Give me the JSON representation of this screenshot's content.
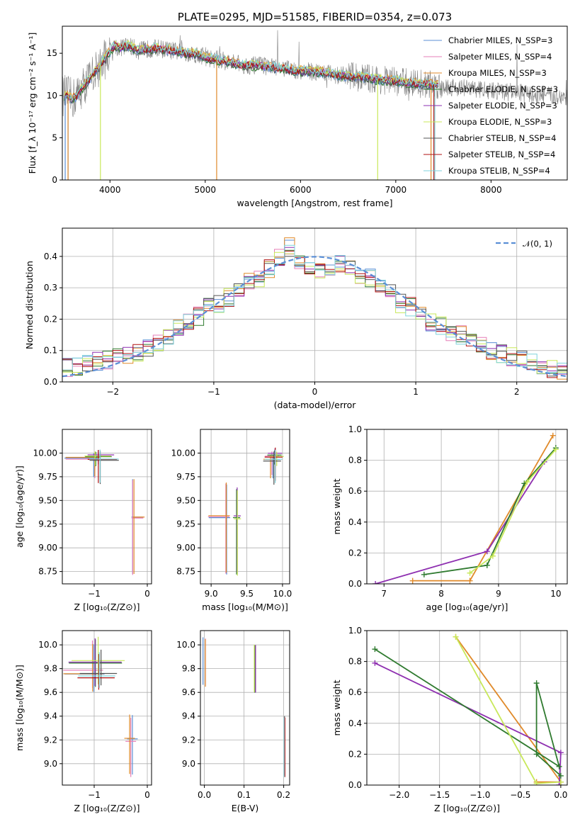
{
  "colors": {
    "Chabrier MILES": "#5b8fd6",
    "Salpeter MILES": "#e67fb8",
    "Kroupa MILES": "#e08a2a",
    "Chabrier ELODIE": "#2f7a2f",
    "Salpeter ELODIE": "#8e2fb0",
    "Kroupa ELODIE": "#c8e85a",
    "Chabrier STELIB": "#555555",
    "Salpeter STELIB": "#b01010",
    "Kroupa STELIB": "#7fd3dc",
    "normal": "#5b8fd6",
    "data": "#808080"
  },
  "chart_data": [
    {
      "id": "spectrum",
      "type": "line",
      "title": "PLATE=0295, MJD=51585, FIBERID=0354, z=0.073",
      "xlabel": "wavelength [Angstrom, rest frame]",
      "ylabel": "Flux [f_λ 10⁻¹⁷ erg cm⁻² s⁻¹ A⁻¹]",
      "xlim": [
        3500,
        8800
      ],
      "ylim": [
        0,
        18.2
      ],
      "xticks": [
        4000,
        5000,
        6000,
        7000,
        8000
      ],
      "yticks": [
        0,
        5,
        10,
        15
      ],
      "legend_position": "top-right",
      "legend": [
        "Chabrier MILES, N_SSP=3",
        "Salpeter MILES, N_SSP=4",
        "Kroupa MILES, N_SSP=3",
        "Chabrier ELODIE, N_SSP=3",
        "Salpeter ELODIE, N_SSP=3",
        "Kroupa ELODIE, N_SSP=3",
        "Chabrier STELIB, N_SSP=4",
        "Salpeter STELIB, N_SSP=4",
        "Kroupa STELIB, N_SSP=4"
      ],
      "model_x": [
        3550,
        3600,
        3650,
        3700,
        3750,
        3800,
        3850,
        3900,
        3950,
        4000,
        4050,
        4100,
        4150,
        4200,
        4300,
        4400,
        4500,
        4600,
        4700,
        4800,
        4900,
        5000,
        5200,
        5400,
        5600,
        5800,
        6000,
        6200,
        6400,
        6600,
        6800,
        7000,
        7200,
        7400,
        7600,
        7800,
        8000,
        8200,
        8400,
        8600,
        8800
      ],
      "model_y": [
        10.0,
        9.6,
        9.9,
        10.8,
        11.5,
        12.1,
        13.0,
        13.6,
        14.4,
        15.2,
        15.9,
        15.6,
        15.8,
        15.9,
        15.3,
        15.5,
        15.6,
        15.4,
        15.2,
        15.0,
        14.9,
        14.5,
        14.1,
        13.6,
        13.5,
        13.2,
        12.9,
        12.8,
        12.4,
        12.2,
        11.9,
        11.7,
        11.4,
        11.3,
        11.0,
        10.8,
        10.6,
        10.4,
        10.2,
        10.0,
        9.8
      ]
    },
    {
      "id": "residuals",
      "type": "line",
      "xlabel": "(data-model)/error",
      "ylabel": "Normed distribution",
      "xlim": [
        -2.5,
        2.5
      ],
      "ylim": [
        0,
        0.49
      ],
      "xticks": [
        -2,
        -1,
        0,
        1,
        2
      ],
      "yticks": [
        0.0,
        0.1,
        0.2,
        0.3,
        0.4
      ],
      "legend_position": "top-right",
      "legend": [
        "𝒩(0, 1)"
      ],
      "hist_edges": [
        -2.5,
        -2.4,
        -2.3,
        -2.2,
        -2.1,
        -2.0,
        -1.9,
        -1.8,
        -1.7,
        -1.6,
        -1.5,
        -1.4,
        -1.3,
        -1.2,
        -1.1,
        -1.0,
        -0.9,
        -0.8,
        -0.7,
        -0.6,
        -0.5,
        -0.4,
        -0.3,
        -0.2,
        -0.1,
        0.0,
        0.1,
        0.2,
        0.3,
        0.4,
        0.5,
        0.6,
        0.7,
        0.8,
        0.9,
        1.0,
        1.1,
        1.2,
        1.3,
        1.4,
        1.5,
        1.6,
        1.7,
        1.8,
        1.9,
        2.0,
        2.1,
        2.2,
        2.3,
        2.4,
        2.5
      ],
      "hist_base": [
        0.045,
        0.05,
        0.06,
        0.065,
        0.07,
        0.08,
        0.085,
        0.09,
        0.11,
        0.12,
        0.15,
        0.17,
        0.19,
        0.21,
        0.24,
        0.25,
        0.27,
        0.3,
        0.32,
        0.33,
        0.36,
        0.4,
        0.43,
        0.38,
        0.36,
        0.35,
        0.37,
        0.38,
        0.36,
        0.34,
        0.33,
        0.3,
        0.28,
        0.25,
        0.24,
        0.21,
        0.19,
        0.18,
        0.16,
        0.15,
        0.13,
        0.12,
        0.1,
        0.09,
        0.08,
        0.07,
        0.06,
        0.05,
        0.04,
        0.03
      ]
    },
    {
      "id": "age-vs-Z",
      "type": "scatter",
      "xlabel": "Z [log₁₀(Z/Z⊙)]",
      "ylabel": "age  [log₁₀(age/yr)]",
      "xlim": [
        -1.6,
        0.08
      ],
      "ylim": [
        8.62,
        10.25
      ],
      "xticks": [
        -1,
        0
      ],
      "yticks": [
        8.75,
        9.0,
        9.25,
        9.5,
        9.75,
        10.0
      ],
      "points": [
        {
          "x": -1.0,
          "y": 9.95,
          "xerr": [
            0.55,
            0.1
          ],
          "yerr": [
            0.2,
            0.05
          ]
        },
        {
          "x": -0.95,
          "y": 9.98,
          "xerr": [
            0.2,
            0.3
          ],
          "yerr": [
            0.1,
            0.05
          ]
        },
        {
          "x": -0.9,
          "y": 9.94,
          "xerr": [
            0.2,
            0.35
          ],
          "yerr": [
            0.25,
            0.1
          ]
        },
        {
          "x": -0.25,
          "y": 9.33,
          "xerr": [
            0.02,
            0.2
          ],
          "yerr": [
            0.6,
            0.4
          ]
        }
      ]
    },
    {
      "id": "age-vs-mass",
      "type": "scatter",
      "xlabel": "mass [log₁₀(M/M⊙)]",
      "xlim": [
        8.85,
        10.1
      ],
      "ylim": [
        8.62,
        10.25
      ],
      "xticks": [
        9.0,
        9.5,
        10.0
      ],
      "yticks": [
        8.75,
        9.0,
        9.25,
        9.5,
        9.75,
        10.0
      ],
      "points": [
        {
          "x": 9.85,
          "y": 9.95,
          "xerr": [
            0.1,
            0.1
          ],
          "yerr": [
            0.2,
            0.05
          ]
        },
        {
          "x": 9.9,
          "y": 9.98,
          "xerr": [
            0.1,
            0.1
          ],
          "yerr": [
            0.1,
            0.05
          ]
        },
        {
          "x": 9.88,
          "y": 9.94,
          "xerr": [
            0.15,
            0.1
          ],
          "yerr": [
            0.25,
            0.1
          ]
        },
        {
          "x": 9.2,
          "y": 9.33,
          "xerr": [
            0.25,
            0.05
          ],
          "yerr": [
            0.6,
            0.35
          ]
        },
        {
          "x": 9.37,
          "y": 9.32,
          "xerr": [
            0.05,
            0.05
          ],
          "yerr": [
            0.6,
            0.3
          ]
        }
      ]
    },
    {
      "id": "mass-weight-vs-age",
      "type": "line",
      "xlabel": "age  [log₁₀(age/yr)]",
      "ylabel": "mass weight",
      "xlim": [
        6.7,
        10.2
      ],
      "ylim": [
        0,
        1.0
      ],
      "xticks": [
        7,
        8,
        9,
        10
      ],
      "yticks": [
        0.0,
        0.2,
        0.4,
        0.6,
        0.8,
        1.0
      ],
      "series_x": [
        [
          7.5,
          8.5,
          9.95
        ],
        [
          6.85,
          8.8,
          9.8
        ],
        [
          7.7,
          8.8,
          9.45,
          10.0
        ],
        [
          8.5,
          8.9,
          9.5,
          10.0
        ]
      ],
      "series_y": [
        [
          0.02,
          0.02,
          0.96
        ],
        [
          0.0,
          0.21,
          0.79
        ],
        [
          0.06,
          0.12,
          0.65,
          0.88
        ],
        [
          0.07,
          0.18,
          0.66,
          0.87
        ]
      ]
    },
    {
      "id": "mass-vs-Z",
      "type": "scatter",
      "xlabel": "Z [log₁₀(Z/Z⊙)]",
      "ylabel": "mass [log₁₀(M/M⊙)]",
      "xlim": [
        -1.6,
        0.08
      ],
      "ylim": [
        8.82,
        10.12
      ],
      "xticks": [
        -1,
        0
      ],
      "yticks": [
        9.0,
        9.2,
        9.4,
        9.6,
        9.8,
        10.0
      ],
      "points": [
        {
          "x": -1.0,
          "y": 9.77,
          "xerr": [
            0.55,
            0.2
          ],
          "yerr": [
            0.15,
            0.25
          ]
        },
        {
          "x": -0.95,
          "y": 9.85,
          "xerr": [
            0.5,
            0.5
          ],
          "yerr": [
            0.2,
            0.2
          ]
        },
        {
          "x": -0.9,
          "y": 9.74,
          "xerr": [
            0.4,
            0.3
          ],
          "yerr": [
            0.1,
            0.2
          ]
        },
        {
          "x": -0.3,
          "y": 9.2,
          "xerr": [
            0.1,
            0.1
          ],
          "yerr": [
            0.3,
            0.2
          ]
        }
      ]
    },
    {
      "id": "mass-vs-EBV",
      "type": "scatter",
      "xlabel": "E(B-V)",
      "xlim": [
        -0.01,
        0.215
      ],
      "ylim": [
        8.82,
        10.12
      ],
      "xticks": [
        0.0,
        0.1,
        0.2
      ],
      "yticks": [
        9.0,
        9.2,
        9.4,
        9.6,
        9.8,
        10.0
      ],
      "points": [
        {
          "x": 0.0,
          "y": 9.85,
          "yerr": [
            0.2,
            0.2
          ]
        },
        {
          "x": 0.13,
          "y": 9.8,
          "yerr": [
            0.2,
            0.2
          ]
        },
        {
          "x": 0.205,
          "y": 9.2,
          "yerr": [
            0.3,
            0.2
          ]
        }
      ]
    },
    {
      "id": "mass-weight-vs-Z",
      "type": "line",
      "xlabel": "Z [log₁₀(Z/Z⊙)]",
      "ylabel": "mass weight",
      "xlim": [
        -2.4,
        0.08
      ],
      "ylim": [
        0,
        1.0
      ],
      "xticks": [
        -2.0,
        -1.5,
        -1.0,
        -0.5,
        0.0
      ],
      "yticks": [
        0.0,
        0.2,
        0.4,
        0.6,
        0.8,
        1.0
      ],
      "series_x": [
        [
          -1.3,
          0.0,
          -0.3,
          0.0
        ],
        [
          -2.3,
          0.0,
          -0.02
        ],
        [
          -2.3,
          -0.02,
          -0.3,
          -0.3,
          0.0
        ],
        [
          -1.3,
          -0.3,
          0.0
        ]
      ],
      "series_y": [
        [
          0.96,
          0.02,
          0.02,
          0.02
        ],
        [
          0.79,
          0.21,
          0.0
        ],
        [
          0.88,
          0.12,
          0.66,
          0.2,
          0.06
        ],
        [
          0.96,
          0.01,
          0.02
        ]
      ]
    }
  ]
}
